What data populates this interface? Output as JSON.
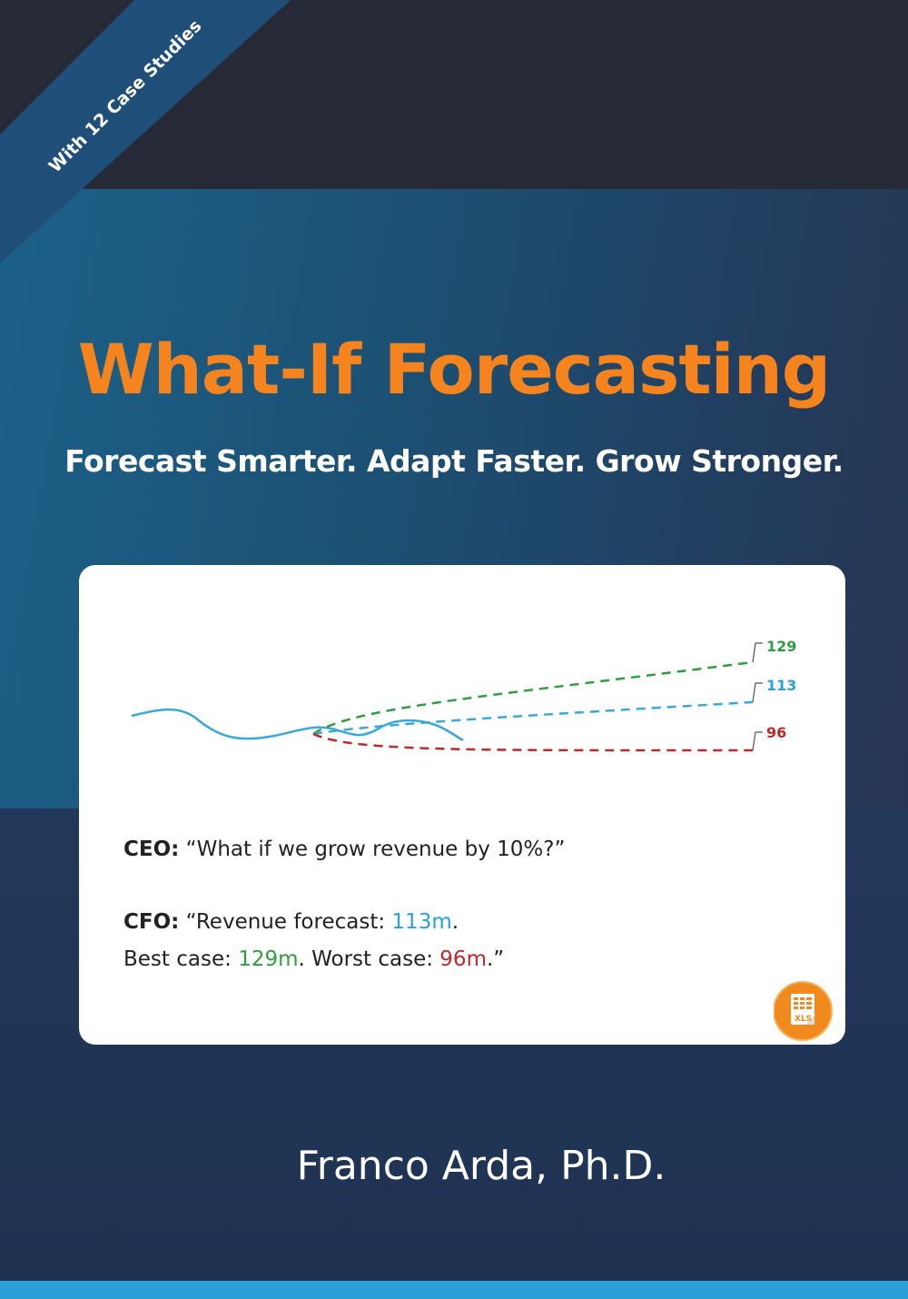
{
  "ribbon": {
    "text": "With 12 Case Studies"
  },
  "book": {
    "title": "What-If Forecasting",
    "subtitle": "Forecast Smarter. Adapt Faster. Grow Stronger.",
    "author": "Franco Arda, Ph.D."
  },
  "chart_data": {
    "type": "line",
    "series": [
      {
        "values": []
      },
      {
        "values": [
          129
        ]
      },
      {
        "values": [
          113
        ]
      },
      {
        "values": [
          96
        ]
      }
    ],
    "end_labels": [
      "129",
      "113",
      "96"
    ]
  },
  "dialog": {
    "ceo_label": "CEO:",
    "ceo_text": "“What if we grow revenue by 10%?”",
    "cfo_label": "CFO:",
    "cfo_text_1": "“Revenue forecast: ",
    "cfo_value_forecast": "113m",
    "cfo_text_2": ".",
    "best_label": "Best case: ",
    "best_value": "129m",
    "worst_label": ". Worst case: ",
    "worst_value": "96m",
    "closing": ".”"
  },
  "badge": {
    "text": "XLS"
  },
  "colors": {
    "title": "#f5841f",
    "base_line": "#3aa8d8",
    "best": "#2f9e3f",
    "forecast": "#29a3d6",
    "worst": "#c0282c",
    "bottom_strip": "#2a9fd8"
  }
}
